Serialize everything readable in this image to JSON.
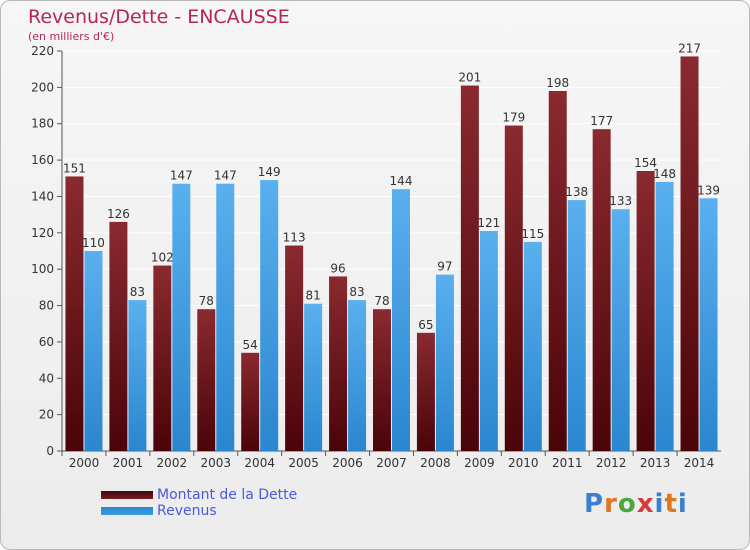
{
  "title": "Revenus/Dette - ENCAUSSE",
  "subtitle": "(en milliers d'€)",
  "brand": {
    "text": "Proxiti",
    "colors": [
      "#3a7fd0",
      "#e0761f",
      "#4aa83a",
      "#d83a3a",
      "#3a7fd0",
      "#e0761f",
      "#3a7fd0"
    ]
  },
  "legend": [
    {
      "label": "Montant de la Dette",
      "color": "#7a1c22"
    },
    {
      "label": "Revenus",
      "color": "#3a9be0"
    }
  ],
  "chart_data": {
    "type": "bar",
    "categories": [
      "2000",
      "2001",
      "2002",
      "2003",
      "2004",
      "2005",
      "2006",
      "2007",
      "2008",
      "2009",
      "2010",
      "2011",
      "2012",
      "2013",
      "2014"
    ],
    "series": [
      {
        "name": "Montant de la Dette",
        "color": "#7a1c22",
        "values": [
          151,
          126,
          102,
          78,
          54,
          113,
          96,
          78,
          65,
          201,
          179,
          198,
          177,
          154,
          217
        ]
      },
      {
        "name": "Revenus",
        "color": "#3a9be0",
        "values": [
          110,
          83,
          147,
          147,
          149,
          81,
          83,
          144,
          97,
          121,
          115,
          138,
          133,
          148,
          139
        ]
      }
    ],
    "ylim": [
      0,
      220
    ],
    "yticks": [
      0,
      20,
      40,
      60,
      80,
      100,
      120,
      140,
      160,
      180,
      200,
      220
    ],
    "grid": true
  }
}
